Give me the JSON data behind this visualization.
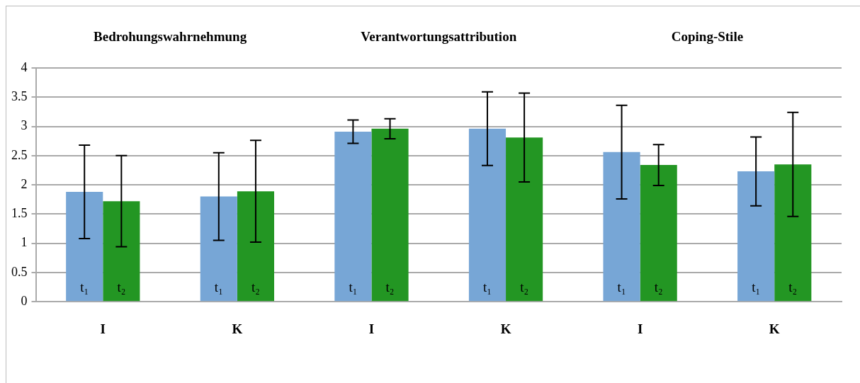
{
  "chart_data": {
    "type": "bar",
    "categories": [
      "I",
      "K",
      "I",
      "K",
      "I",
      "K"
    ],
    "annotations": [
      "Bedrohungswahrnehmung",
      "Verantwortungsattribution",
      "Coping-Stile"
    ],
    "series": [
      {
        "name": "t₁",
        "color": "#77a6d6",
        "values": [
          1.88,
          1.8,
          2.91,
          2.96,
          2.56,
          2.23
        ],
        "errors": [
          0.8,
          0.75,
          0.2,
          0.63,
          0.8,
          0.59
        ]
      },
      {
        "name": "t₂",
        "color": "#239623",
        "values": [
          1.72,
          1.89,
          2.96,
          2.81,
          2.34,
          2.35
        ],
        "errors": [
          0.78,
          0.87,
          0.17,
          0.76,
          0.35,
          0.89
        ]
      }
    ],
    "ylim": [
      0,
      4
    ],
    "yticks": [
      0,
      0.5,
      1,
      1.5,
      2,
      2.5,
      3,
      3.5,
      4
    ],
    "grid": "y",
    "legend": false
  }
}
